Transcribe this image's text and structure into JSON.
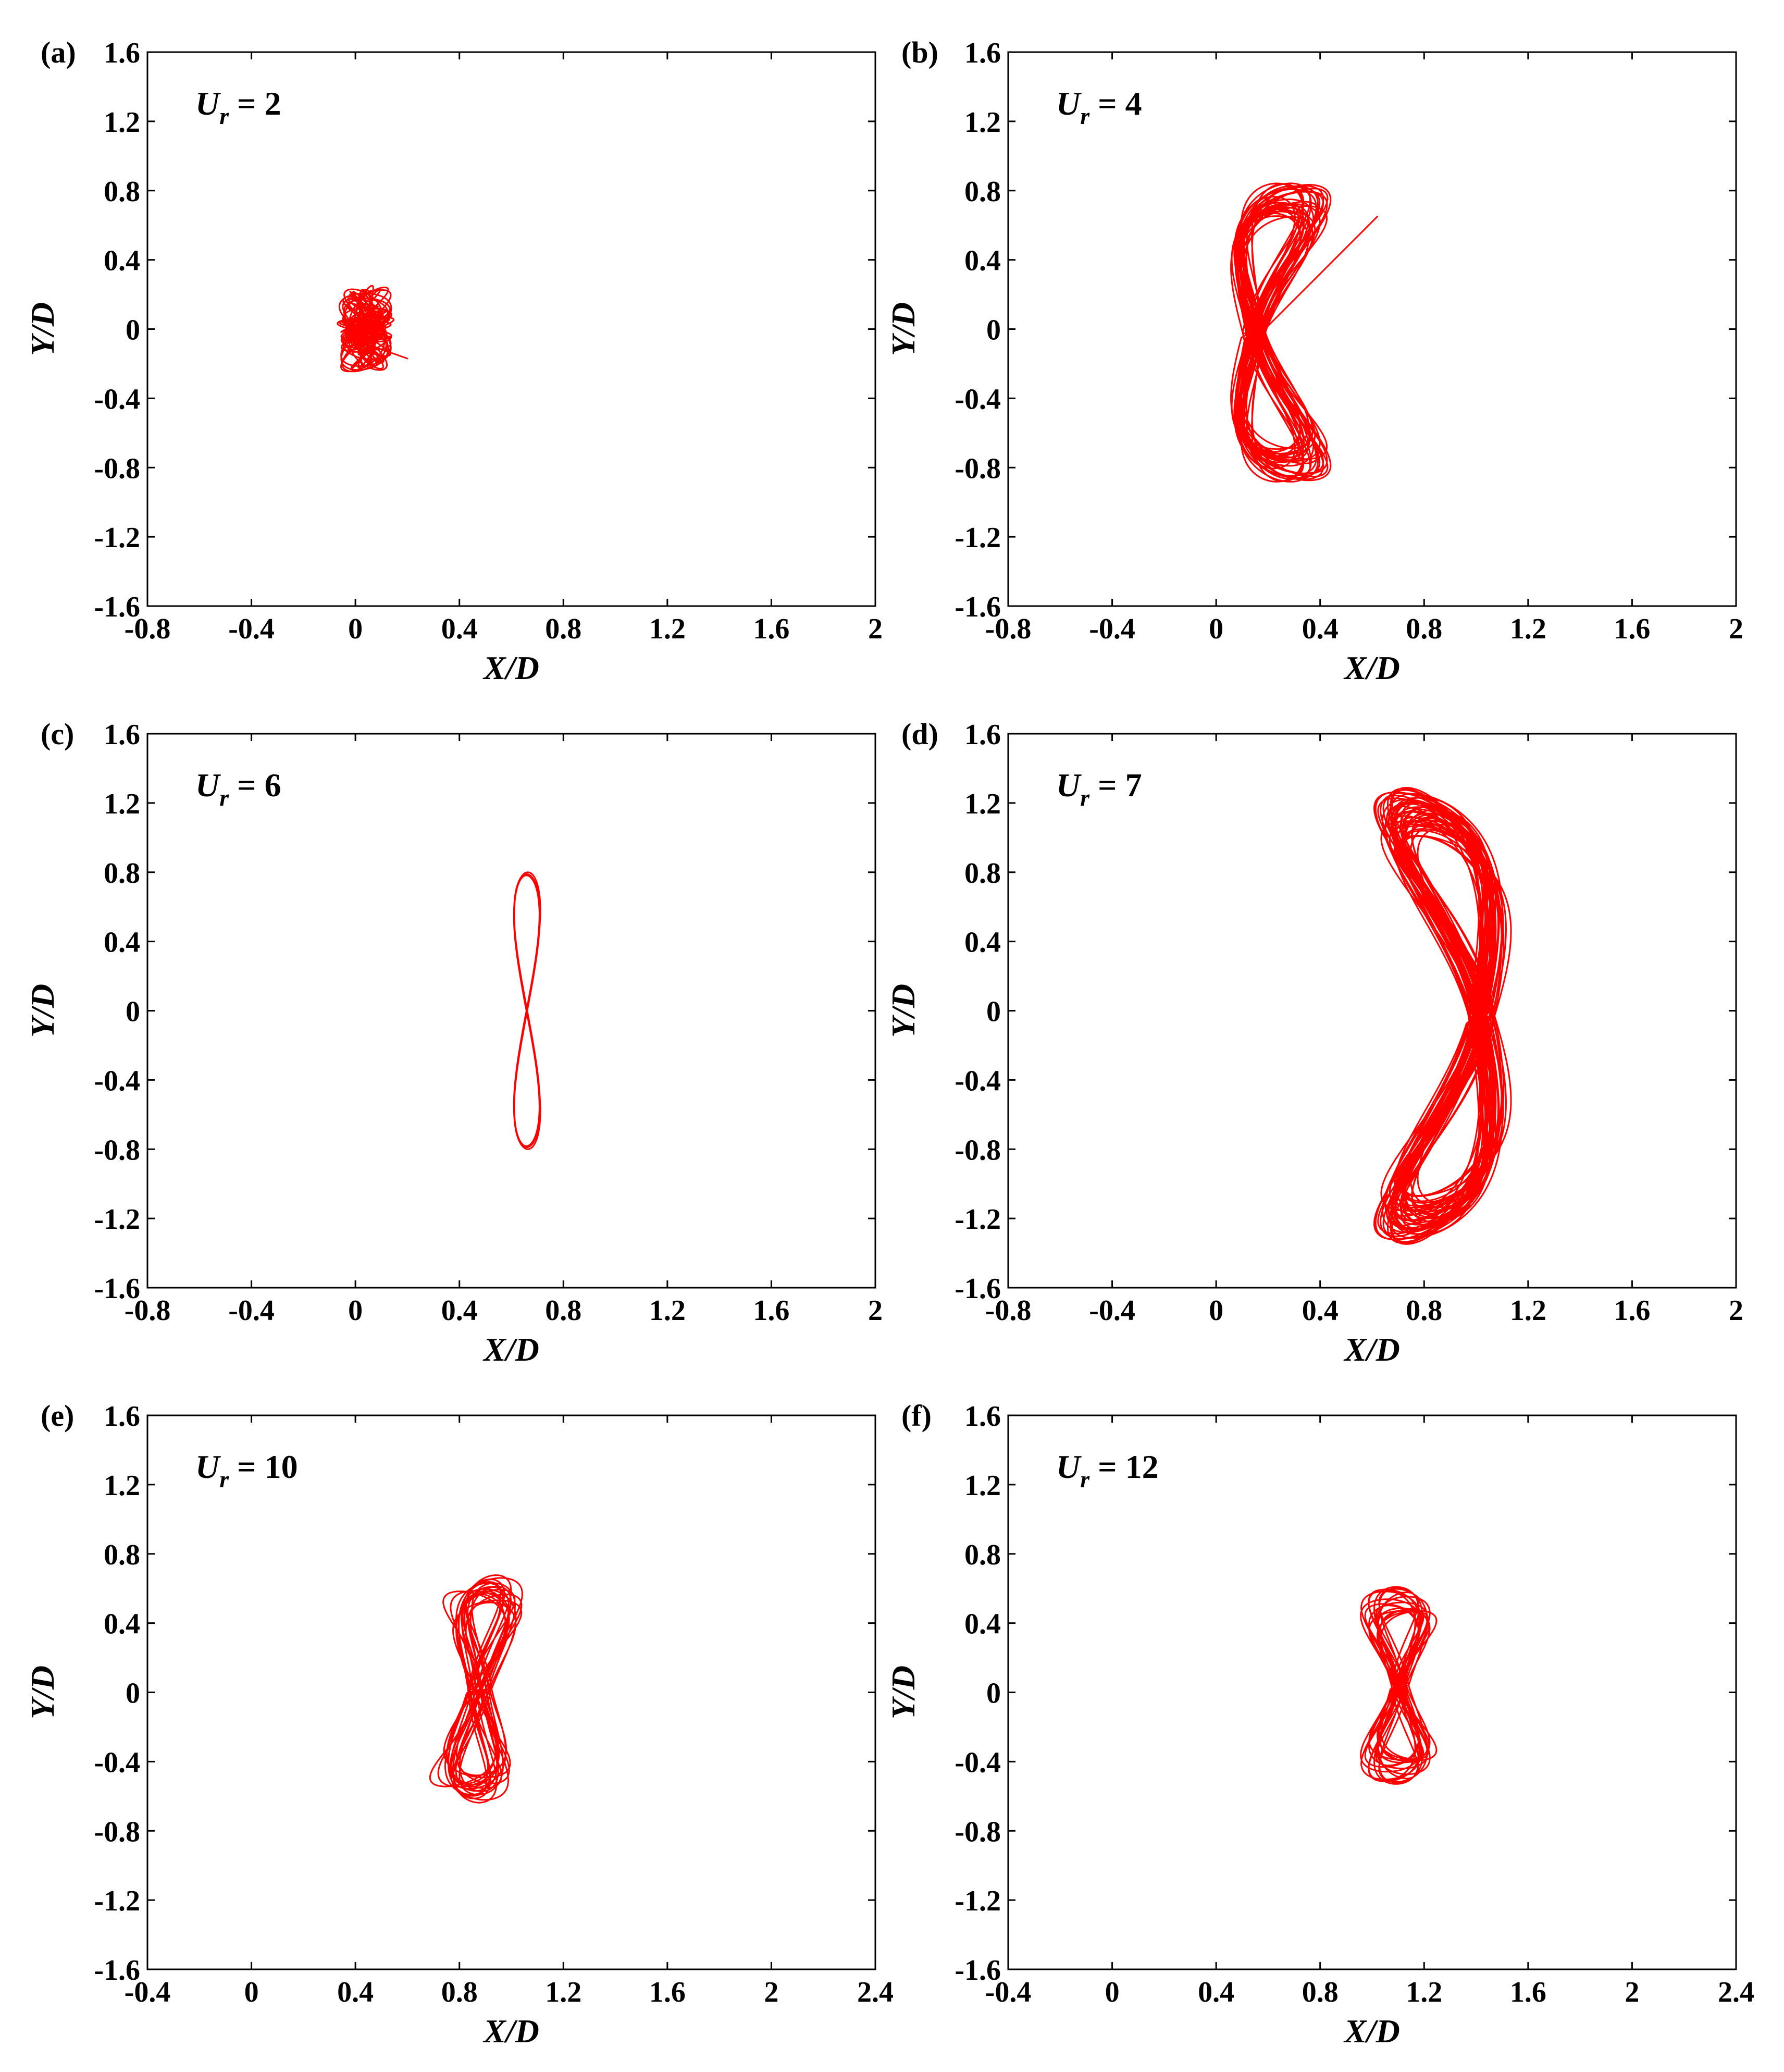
{
  "figure": {
    "line_color": "#ff0000"
  },
  "chart_data": [
    {
      "type": "line",
      "panel": "(a)",
      "annotation": {
        "symbol": "U",
        "subscript": "r",
        "text": " = 2"
      },
      "xlabel": "X/D",
      "ylabel": "Y/D",
      "xlim": [
        -0.8,
        2
      ],
      "ylim": [
        -1.6,
        1.6
      ],
      "xticks": [
        -0.8,
        -0.4,
        0,
        0.4,
        0.8,
        1.2,
        1.6,
        2
      ],
      "xtick_labels": [
        "-0.8",
        "-0.4",
        "0",
        "0.4",
        "0.8",
        "1.2",
        "1.6",
        "2"
      ],
      "yticks": [
        -1.6,
        -1.2,
        -0.8,
        -0.4,
        0,
        0.4,
        0.8,
        1.2,
        1.6
      ],
      "ytick_labels": [
        "-1.6",
        "-1.2",
        "-0.8",
        "-0.4",
        "0",
        "0.4",
        "0.8",
        "1.2",
        "1.6"
      ],
      "trajectory": {
        "kind": "cluster",
        "cx": 0.04,
        "cy": 0.0,
        "ax": 0.1,
        "ay": 0.24,
        "waist": 0.0,
        "lean": 0.0,
        "bend": 0.0,
        "cycles": 40,
        "wobble": 0.25,
        "seed": 3,
        "tail": [
          0.2,
          -0.17
        ]
      }
    },
    {
      "type": "line",
      "panel": "(b)",
      "annotation": {
        "symbol": "U",
        "subscript": "r",
        "text": " = 4"
      },
      "xlabel": "X/D",
      "ylabel": "Y/D",
      "xlim": [
        -0.8,
        2
      ],
      "ylim": [
        -1.6,
        1.6
      ],
      "xticks": [
        -0.8,
        -0.4,
        0,
        0.4,
        0.8,
        1.2,
        1.6,
        2
      ],
      "xtick_labels": [
        "-0.8",
        "-0.4",
        "0",
        "0.4",
        "0.8",
        "1.2",
        "1.6",
        "2"
      ],
      "yticks": [
        -1.6,
        -1.2,
        -0.8,
        -0.4,
        0,
        0.4,
        0.8,
        1.2,
        1.6
      ],
      "ytick_labels": [
        "-1.6",
        "-1.2",
        "-0.8",
        "-0.4",
        "0",
        "0.4",
        "0.8",
        "1.2",
        "1.6"
      ],
      "trajectory": {
        "kind": "fig8",
        "cx": 0.2,
        "cy": -0.02,
        "ax": 0.15,
        "ay": 0.76,
        "waist": 0.45,
        "lean": 0.0,
        "bend": -0.12,
        "cycles": 30,
        "wobble": 0.45,
        "seed": 7,
        "tail": [
          0.62,
          0.65
        ]
      }
    },
    {
      "type": "line",
      "panel": "(c)",
      "annotation": {
        "symbol": "U",
        "subscript": "r",
        "text": " = 6"
      },
      "xlabel": "X/D",
      "ylabel": "Y/D",
      "xlim": [
        -0.8,
        2
      ],
      "ylim": [
        -1.6,
        1.6
      ],
      "xticks": [
        -0.8,
        -0.4,
        0,
        0.4,
        0.8,
        1.2,
        1.6,
        2
      ],
      "xtick_labels": [
        "-0.8",
        "-0.4",
        "0",
        "0.4",
        "0.8",
        "1.2",
        "1.6",
        "2"
      ],
      "yticks": [
        -1.6,
        -1.2,
        -0.8,
        -0.4,
        0,
        0.4,
        0.8,
        1.2,
        1.6
      ],
      "ytick_labels": [
        "-1.6",
        "-1.2",
        "-0.8",
        "-0.4",
        "0",
        "0.4",
        "0.8",
        "1.2",
        "1.6"
      ],
      "trajectory": {
        "kind": "fig8",
        "cx": 0.66,
        "cy": 0.0,
        "ax": 0.05,
        "ay": 0.79,
        "waist": 0.0,
        "lean": 0.0,
        "bend": 0.0,
        "cycles": 5,
        "wobble": 0.06,
        "seed": 11,
        "tail": null
      }
    },
    {
      "type": "line",
      "panel": "(d)",
      "annotation": {
        "symbol": "U",
        "subscript": "r",
        "text": " = 7"
      },
      "xlabel": "X/D",
      "ylabel": "Y/D",
      "xlim": [
        -0.8,
        2
      ],
      "ylim": [
        -1.6,
        1.6
      ],
      "xticks": [
        -0.8,
        -0.4,
        0,
        0.4,
        0.8,
        1.2,
        1.6,
        2
      ],
      "xtick_labels": [
        "-0.8",
        "-0.4",
        "0",
        "0.4",
        "0.8",
        "1.2",
        "1.6",
        "2"
      ],
      "yticks": [
        -1.6,
        -1.2,
        -0.8,
        -0.4,
        0,
        0.4,
        0.8,
        1.2,
        1.6
      ],
      "ytick_labels": [
        "-1.6",
        "-1.2",
        "-0.8",
        "-0.4",
        "0",
        "0.4",
        "0.8",
        "1.2",
        "1.6"
      ],
      "trajectory": {
        "kind": "fig8",
        "cx": 0.92,
        "cy": -0.03,
        "ax": 0.17,
        "ay": 1.18,
        "waist": 0.5,
        "lean": 0.0,
        "bend": 0.25,
        "cycles": 45,
        "wobble": 0.4,
        "seed": 19,
        "tail": null
      }
    },
    {
      "type": "line",
      "panel": "(e)",
      "annotation": {
        "symbol": "U",
        "subscript": "r",
        "text": " = 10"
      },
      "xlabel": "X/D",
      "ylabel": "Y/D",
      "xlim": [
        -0.4,
        2.4
      ],
      "ylim": [
        -1.6,
        1.6
      ],
      "xticks": [
        -0.4,
        0,
        0.4,
        0.8,
        1.2,
        1.6,
        2,
        2.4
      ],
      "xtick_labels": [
        "-0.4",
        "0",
        "0.4",
        "0.8",
        "1.2",
        "1.6",
        "2",
        "2.4"
      ],
      "yticks": [
        -1.6,
        -1.2,
        -0.8,
        -0.4,
        0,
        0.4,
        0.8,
        1.2,
        1.6
      ],
      "ytick_labels": [
        "-1.6",
        "-1.2",
        "-0.8",
        "-0.4",
        "0",
        "0.4",
        "0.8",
        "1.2",
        "1.6"
      ],
      "trajectory": {
        "kind": "fig8",
        "cx": 0.88,
        "cy": 0.02,
        "ax": 0.12,
        "ay": 0.58,
        "waist": 0.55,
        "lean": 0.05,
        "bend": 0.0,
        "cycles": 18,
        "wobble": 0.55,
        "seed": 23,
        "tail": null
      }
    },
    {
      "type": "line",
      "panel": "(f)",
      "annotation": {
        "symbol": "U",
        "subscript": "r",
        "text": " = 12"
      },
      "xlabel": "X/D",
      "ylabel": "Y/D",
      "xlim": [
        -0.4,
        2.4
      ],
      "ylim": [
        -1.6,
        1.6
      ],
      "xticks": [
        -0.4,
        0,
        0.4,
        0.8,
        1.2,
        1.6,
        2,
        2.4
      ],
      "xtick_labels": [
        "-0.4",
        "0",
        "0.4",
        "0.8",
        "1.2",
        "1.6",
        "2",
        "2.4"
      ],
      "yticks": [
        -1.6,
        -1.2,
        -0.8,
        -0.4,
        0,
        0.4,
        0.8,
        1.2,
        1.6
      ],
      "ytick_labels": [
        "-1.6",
        "-1.2",
        "-0.8",
        "-0.4",
        "0",
        "0.4",
        "0.8",
        "1.2",
        "1.6"
      ],
      "trajectory": {
        "kind": "fig8",
        "cx": 1.1,
        "cy": 0.04,
        "ax": 0.11,
        "ay": 0.5,
        "waist": 0.55,
        "lean": 0.0,
        "bend": 0.0,
        "cycles": 18,
        "wobble": 0.5,
        "seed": 29,
        "tail": null
      }
    }
  ]
}
